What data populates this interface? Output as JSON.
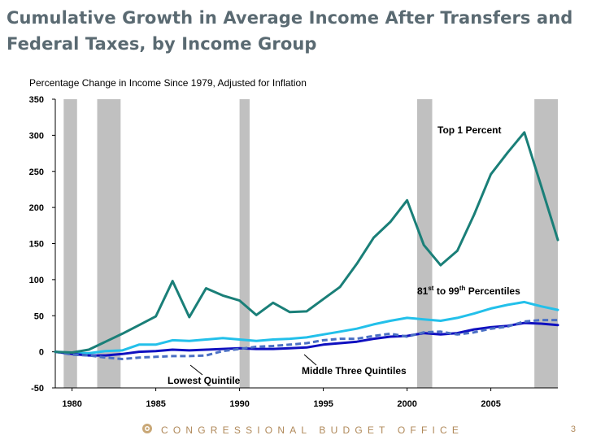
{
  "title": "Cumulative Growth in Average Income After Transfers and Federal Taxes, by Income Group",
  "footer": {
    "org": "CONGRESSIONAL BUDGET OFFICE",
    "page": "3"
  },
  "colors": {
    "top1": "#1a7f78",
    "p81_99": "#23c0ea",
    "middle": "#1010c0",
    "lowest": "#4a6fc4",
    "recession": "#c0c0c0"
  },
  "chart_data": {
    "type": "line",
    "title": "Cumulative Growth in Average Income After Transfers and Federal Taxes, by Income Group",
    "ylabel": "Percentage Change in Income Since 1979, Adjusted for Inflation",
    "xlabel": "",
    "xlim": [
      1979,
      2009
    ],
    "ylim": [
      -50,
      350
    ],
    "yticks": [
      -50,
      0,
      50,
      100,
      150,
      200,
      250,
      300,
      350
    ],
    "xticks": [
      1980,
      1985,
      1990,
      1995,
      2000,
      2005
    ],
    "recessions": [
      [
        1979.5,
        1980.3
      ],
      [
        1981.5,
        1982.9
      ],
      [
        1990.0,
        1990.6
      ],
      [
        2000.6,
        2001.5
      ],
      [
        2007.6,
        2009.0
      ]
    ],
    "x": [
      1979,
      1980,
      1981,
      1982,
      1983,
      1984,
      1985,
      1986,
      1987,
      1988,
      1989,
      1990,
      1991,
      1992,
      1993,
      1994,
      1995,
      1996,
      1997,
      1998,
      1999,
      2000,
      2001,
      2002,
      2003,
      2004,
      2005,
      2006,
      2007,
      2008,
      2009
    ],
    "series": [
      {
        "name": "Top 1 Percent",
        "key": "top1",
        "style": "solid",
        "values": [
          0,
          -1,
          3,
          14,
          25,
          37,
          49,
          98,
          48,
          88,
          78,
          71,
          51,
          68,
          55,
          56,
          73,
          90,
          122,
          158,
          180,
          210,
          148,
          120,
          140,
          190,
          246,
          276,
          304,
          230,
          155
        ]
      },
      {
        "name": "81st to 99th Percentiles",
        "key": "p81_99",
        "style": "solid",
        "values": [
          0,
          -2,
          -2,
          1,
          2,
          10,
          10,
          16,
          15,
          17,
          19,
          17,
          15,
          17,
          18,
          20,
          24,
          28,
          32,
          38,
          43,
          47,
          45,
          43,
          47,
          53,
          60,
          65,
          69,
          63,
          58
        ]
      },
      {
        "name": "Middle Three Quintiles",
        "key": "middle",
        "style": "solid",
        "values": [
          0,
          -3,
          -5,
          -5,
          -3,
          0,
          1,
          3,
          2,
          3,
          4,
          5,
          4,
          4,
          5,
          6,
          10,
          12,
          14,
          18,
          21,
          22,
          26,
          24,
          26,
          31,
          34,
          36,
          40,
          39,
          37
        ]
      },
      {
        "name": "Lowest Quintile",
        "key": "lowest",
        "style": "dashed",
        "values": [
          0,
          -4,
          -5,
          -8,
          -10,
          -8,
          -7,
          -6,
          -6,
          -5,
          1,
          4,
          7,
          8,
          10,
          12,
          16,
          18,
          18,
          22,
          25,
          21,
          27,
          28,
          24,
          27,
          32,
          35,
          42,
          44,
          44
        ]
      }
    ],
    "annotations": {
      "top1": "Top 1 Percent",
      "p81_99_prefix": "81",
      "p81_99_sup1": "st",
      "p81_99_mid": " to 99",
      "p81_99_sup2": "th",
      "p81_99_suffix": " Percentiles",
      "middle": "Middle Three Quintiles",
      "lowest": "Lowest Quintile"
    }
  }
}
